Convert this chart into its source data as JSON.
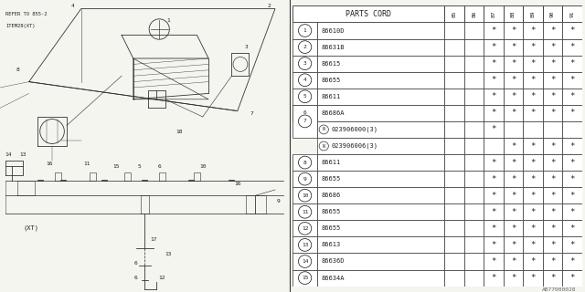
{
  "bg_color": "#f5f5f0",
  "parts_cord_header": "PARTS CORD",
  "year_cols": [
    "85",
    "86",
    "87",
    "88",
    "89",
    "90",
    "91"
  ],
  "rows": [
    {
      "num": "1",
      "part": "86610D",
      "sub": null,
      "stars": [
        0,
        0,
        1,
        1,
        1,
        1,
        1
      ]
    },
    {
      "num": "2",
      "part": "86631B",
      "sub": null,
      "stars": [
        0,
        0,
        1,
        1,
        1,
        1,
        1
      ]
    },
    {
      "num": "3",
      "part": "86615",
      "sub": null,
      "stars": [
        0,
        0,
        1,
        1,
        1,
        1,
        1
      ]
    },
    {
      "num": "4",
      "part": "86655",
      "sub": null,
      "stars": [
        0,
        0,
        1,
        1,
        1,
        1,
        1
      ]
    },
    {
      "num": "5",
      "part": "86611",
      "sub": null,
      "stars": [
        0,
        0,
        1,
        1,
        1,
        1,
        1
      ]
    },
    {
      "num": "6",
      "part": "86686A",
      "sub": null,
      "stars": [
        0,
        0,
        1,
        1,
        1,
        1,
        1
      ]
    },
    {
      "num": "7",
      "part": "023906000(3)",
      "sub": "023906006(3)",
      "stars": [
        0,
        0,
        1,
        0,
        0,
        0,
        0
      ],
      "stars2": [
        0,
        0,
        0,
        1,
        1,
        1,
        1
      ]
    },
    {
      "num": "8",
      "part": "86611",
      "sub": null,
      "stars": [
        0,
        0,
        1,
        1,
        1,
        1,
        1
      ]
    },
    {
      "num": "9",
      "part": "86655",
      "sub": null,
      "stars": [
        0,
        0,
        1,
        1,
        1,
        1,
        1
      ]
    },
    {
      "num": "10",
      "part": "86686",
      "sub": null,
      "stars": [
        0,
        0,
        1,
        1,
        1,
        1,
        1
      ]
    },
    {
      "num": "11",
      "part": "86655",
      "sub": null,
      "stars": [
        0,
        0,
        1,
        1,
        1,
        1,
        1
      ]
    },
    {
      "num": "12",
      "part": "86655",
      "sub": null,
      "stars": [
        0,
        0,
        1,
        1,
        1,
        1,
        1
      ]
    },
    {
      "num": "13",
      "part": "86613",
      "sub": null,
      "stars": [
        0,
        0,
        1,
        1,
        1,
        1,
        1
      ]
    },
    {
      "num": "14",
      "part": "86636D",
      "sub": null,
      "stars": [
        0,
        0,
        1,
        1,
        1,
        1,
        1
      ]
    },
    {
      "num": "15",
      "part": "86634A",
      "sub": null,
      "stars": [
        0,
        0,
        1,
        1,
        1,
        1,
        1
      ]
    }
  ],
  "watermark": "AB77000028",
  "diagram_note1": "REFER TO 855-2",
  "diagram_note2": "ITEM28(XT)"
}
